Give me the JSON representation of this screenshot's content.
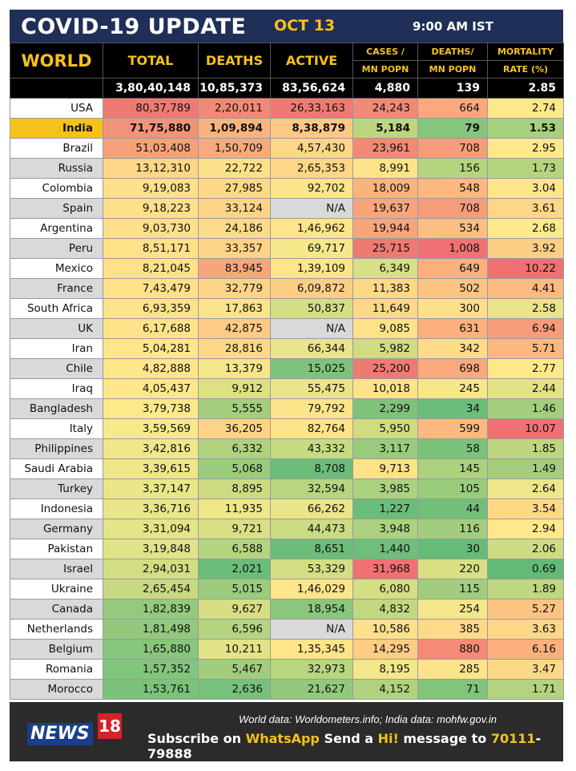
{
  "header": {
    "title": "COVID-19 UPDATE",
    "date": "OCT 13",
    "time": "9:00 AM IST"
  },
  "columns": {
    "world": "WORLD",
    "total": "TOTAL",
    "deaths": "DEATHS",
    "active": "ACTIVE",
    "cases_mn_1": "CASES /",
    "cases_mn_2": "MN POPN",
    "deaths_mn_1": "DEATHS/",
    "deaths_mn_2": "MN POPN",
    "mortality_1": "MORTALITY",
    "mortality_2": "RATE (%)"
  },
  "world_totals": {
    "total": "3,80,40,148",
    "deaths": "10,85,373",
    "active": "83,56,624",
    "cases_mn": "4,880",
    "deaths_mn": "139",
    "mortality": "2.85"
  },
  "rows": [
    {
      "country": "USA",
      "total": "80,37,789",
      "deaths": "2,20,011",
      "active": "26,33,163",
      "cases_mn": "24,243",
      "deaths_mn": "664",
      "mortality": "2.74",
      "colors": [
        "#ee7b73",
        "#f08a77",
        "#ee7b73",
        "#f08a77",
        "#f9a97c",
        "#fee98a"
      ],
      "label_bg": "#ffffff"
    },
    {
      "country": "India",
      "total": "71,75,880",
      "deaths": "1,09,894",
      "active": "8,38,879",
      "cases_mn": "5,184",
      "deaths_mn": "79",
      "mortality": "1.53",
      "colors": [
        "#f29379",
        "#f9b47e",
        "#fcc985",
        "#bcd67f",
        "#86c57c",
        "#a6cf7e"
      ],
      "label_bg": "#f6c21a"
    },
    {
      "country": "Brazil",
      "total": "51,03,408",
      "deaths": "1,50,709",
      "active": "4,57,430",
      "cases_mn": "23,961",
      "deaths_mn": "708",
      "mortality": "2.95",
      "colors": [
        "#f5a27b",
        "#f7ab7d",
        "#fdd687",
        "#f08a77",
        "#f79c7a",
        "#fee98a"
      ],
      "label_bg": "#ffffff"
    },
    {
      "country": "Russia",
      "total": "13,12,310",
      "deaths": "22,722",
      "active": "2,65,353",
      "cases_mn": "8,991",
      "deaths_mn": "156",
      "mortality": "1.73",
      "colors": [
        "#fdd687",
        "#fde089",
        "#fdd687",
        "#fde48a",
        "#b5d47f",
        "#b5d47f"
      ],
      "label_bg": "#d9d9d9"
    },
    {
      "country": "Colombia",
      "total": "9,19,083",
      "deaths": "27,985",
      "active": "92,702",
      "cases_mn": "18,009",
      "deaths_mn": "548",
      "mortality": "3.04",
      "colors": [
        "#fde089",
        "#fdd987",
        "#fde48a",
        "#f9b47e",
        "#fbb880",
        "#fee58a"
      ],
      "label_bg": "#ffffff"
    },
    {
      "country": "Spain",
      "total": "9,18,223",
      "deaths": "33,124",
      "active": "N/A",
      "cases_mn": "19,637",
      "deaths_mn": "708",
      "mortality": "3.61",
      "colors": [
        "#fde089",
        "#fdd487",
        "#d9d9d9",
        "#f7a67c",
        "#f79c7a",
        "#fdd687"
      ],
      "label_bg": "#d9d9d9"
    },
    {
      "country": "Argentina",
      "total": "9,03,730",
      "deaths": "24,186",
      "active": "1,46,962",
      "cases_mn": "19,944",
      "deaths_mn": "534",
      "mortality": "2.68",
      "colors": [
        "#fde089",
        "#fddb88",
        "#fee58a",
        "#f7a67c",
        "#fbbf81",
        "#feea8a"
      ],
      "label_bg": "#ffffff"
    },
    {
      "country": "Peru",
      "total": "8,51,171",
      "deaths": "33,357",
      "active": "69,717",
      "cases_mn": "25,715",
      "deaths_mn": "1,008",
      "mortality": "3.92",
      "colors": [
        "#fee189",
        "#fdd487",
        "#f5e78a",
        "#ee7b73",
        "#f17073",
        "#fdcf86"
      ],
      "label_bg": "#d9d9d9"
    },
    {
      "country": "Mexico",
      "total": "8,21,045",
      "deaths": "83,945",
      "active": "1,39,109",
      "cases_mn": "6,349",
      "deaths_mn": "649",
      "mortality": "10.22",
      "colors": [
        "#fee189",
        "#f7a67c",
        "#fee58a",
        "#d8df84",
        "#fbb07e",
        "#f17073"
      ],
      "label_bg": "#ffffff"
    },
    {
      "country": "France",
      "total": "7,43,479",
      "deaths": "32,779",
      "active": "6,09,872",
      "cases_mn": "11,383",
      "deaths_mn": "502",
      "mortality": "4.41",
      "colors": [
        "#fee189",
        "#fdd487",
        "#fdcf86",
        "#fdd987",
        "#fcc482",
        "#fbbb80"
      ],
      "label_bg": "#d9d9d9"
    },
    {
      "country": "South Africa",
      "total": "6,93,359",
      "deaths": "17,863",
      "active": "50,837",
      "cases_mn": "11,649",
      "deaths_mn": "300",
      "mortality": "2.58",
      "colors": [
        "#fee28a",
        "#fde38a",
        "#d4de84",
        "#fdd987",
        "#fee08a",
        "#e8e488"
      ],
      "label_bg": "#ffffff"
    },
    {
      "country": "UK",
      "total": "6,17,688",
      "deaths": "42,875",
      "active": "N/A",
      "cases_mn": "9,085",
      "deaths_mn": "631",
      "mortality": "6.94",
      "colors": [
        "#fee38a",
        "#fccb85",
        "#d9d9d9",
        "#fde28a",
        "#fbb07e",
        "#f79c7a"
      ],
      "label_bg": "#d9d9d9"
    },
    {
      "country": "Iran",
      "total": "5,04,281",
      "deaths": "28,816",
      "active": "66,344",
      "cases_mn": "5,982",
      "deaths_mn": "342",
      "mortality": "5.71",
      "colors": [
        "#fee68a",
        "#fdd987",
        "#eae58a",
        "#d0dc82",
        "#fedc88",
        "#fbb880"
      ],
      "label_bg": "#ffffff"
    },
    {
      "country": "Chile",
      "total": "4,82,888",
      "deaths": "13,379",
      "active": "15,025",
      "cases_mn": "25,200",
      "deaths_mn": "698",
      "mortality": "2.77",
      "colors": [
        "#fee68a",
        "#f5e68a",
        "#7fc37b",
        "#ee7b73",
        "#f9a97c",
        "#fee98a"
      ],
      "label_bg": "#d9d9d9"
    },
    {
      "country": "Iraq",
      "total": "4,05,437",
      "deaths": "9,912",
      "active": "55,475",
      "cases_mn": "10,018",
      "deaths_mn": "245",
      "mortality": "2.44",
      "colors": [
        "#fee78a",
        "#dde184",
        "#ebe58a",
        "#fde28a",
        "#f7e78a",
        "#e3e287"
      ],
      "label_bg": "#ffffff"
    },
    {
      "country": "Bangladesh",
      "total": "3,79,738",
      "deaths": "5,555",
      "active": "79,792",
      "cases_mn": "2,299",
      "deaths_mn": "34",
      "mortality": "1.46",
      "colors": [
        "#fbe98a",
        "#a4ce7e",
        "#fde48a",
        "#7fc37b",
        "#6bbd79",
        "#a4ce7e"
      ],
      "label_bg": "#d9d9d9"
    },
    {
      "country": "Italy",
      "total": "3,59,569",
      "deaths": "36,205",
      "active": "82,764",
      "cases_mn": "5,950",
      "deaths_mn": "599",
      "mortality": "10.07",
      "colors": [
        "#f7e98a",
        "#fdd487",
        "#fde48a",
        "#d0dc82",
        "#fbb880",
        "#f17073"
      ],
      "label_bg": "#ffffff"
    },
    {
      "country": "Philippines",
      "total": "3,42,816",
      "deaths": "6,332",
      "active": "43,332",
      "cases_mn": "3,117",
      "deaths_mn": "58",
      "mortality": "1.85",
      "colors": [
        "#f0e78a",
        "#b0d27f",
        "#c8da82",
        "#99cb7d",
        "#7bc27b",
        "#bcd67f"
      ],
      "label_bg": "#d9d9d9"
    },
    {
      "country": "Saudi Arabia",
      "total": "3,39,615",
      "deaths": "5,068",
      "active": "8,708",
      "cases_mn": "9,713",
      "deaths_mn": "145",
      "mortality": "1.49",
      "colors": [
        "#eee78a",
        "#9bcc7d",
        "#6bbd79",
        "#fde28a",
        "#acd17f",
        "#a4ce7e"
      ],
      "label_bg": "#ffffff"
    },
    {
      "country": "Turkey",
      "total": "3,37,147",
      "deaths": "8,895",
      "active": "32,594",
      "cases_mn": "3,985",
      "deaths_mn": "105",
      "mortality": "2.64",
      "colors": [
        "#eae68a",
        "#cfdb82",
        "#b8d580",
        "#acd17f",
        "#9bcc7d",
        "#ede68a"
      ],
      "label_bg": "#d9d9d9"
    },
    {
      "country": "Indonesia",
      "total": "3,36,716",
      "deaths": "11,935",
      "active": "66,262",
      "cases_mn": "1,227",
      "deaths_mn": "44",
      "mortality": "3.54",
      "colors": [
        "#e8e58a",
        "#efe78a",
        "#eae58a",
        "#6bbd79",
        "#72bf7a",
        "#fdd987"
      ],
      "label_bg": "#ffffff"
    },
    {
      "country": "Germany",
      "total": "3,31,094",
      "deaths": "9,721",
      "active": "44,473",
      "cases_mn": "3,948",
      "deaths_mn": "116",
      "mortality": "2.94",
      "colors": [
        "#e5e488",
        "#d9df84",
        "#cbdb82",
        "#acd17f",
        "#a2cd7e",
        "#fee98a"
      ],
      "label_bg": "#d9d9d9"
    },
    {
      "country": "Pakistan",
      "total": "3,19,848",
      "deaths": "6,588",
      "active": "8,651",
      "cases_mn": "1,440",
      "deaths_mn": "30",
      "mortality": "2.06",
      "colors": [
        "#e0e387",
        "#b5d47f",
        "#6bbd79",
        "#6fbe7a",
        "#66bb78",
        "#cfdb82"
      ],
      "label_bg": "#ffffff"
    },
    {
      "country": "Israel",
      "total": "2,94,031",
      "deaths": "2,021",
      "active": "53,329",
      "cases_mn": "31,968",
      "deaths_mn": "220",
      "mortality": "0.69",
      "colors": [
        "#d3dd83",
        "#6bbd79",
        "#d3dd83",
        "#f17073",
        "#d8df84",
        "#63ba78"
      ],
      "label_bg": "#d9d9d9"
    },
    {
      "country": "Ukraine",
      "total": "2,65,454",
      "deaths": "5,015",
      "active": "1,46,029",
      "cases_mn": "6,080",
      "deaths_mn": "115",
      "mortality": "1.89",
      "colors": [
        "#c7d981",
        "#9bcc7d",
        "#fee58a",
        "#d4de84",
        "#a2cd7e",
        "#bfd780"
      ],
      "label_bg": "#ffffff"
    },
    {
      "country": "Canada",
      "total": "1,82,839",
      "deaths": "9,627",
      "active": "18,954",
      "cases_mn": "4,832",
      "deaths_mn": "254",
      "mortality": "5.27",
      "colors": [
        "#95c97d",
        "#d6de84",
        "#8ac77c",
        "#c1d881",
        "#f4e68a",
        "#fbc482"
      ],
      "label_bg": "#d9d9d9"
    },
    {
      "country": "Netherlands",
      "total": "1,81,498",
      "deaths": "6,596",
      "active": "N/A",
      "cases_mn": "10,586",
      "deaths_mn": "385",
      "mortality": "3.63",
      "colors": [
        "#93c97d",
        "#b5d47f",
        "#d9d9d9",
        "#fde08a",
        "#fed987",
        "#fdd687"
      ],
      "label_bg": "#ffffff"
    },
    {
      "country": "Belgium",
      "total": "1,65,880",
      "deaths": "10,211",
      "active": "1,35,345",
      "cases_mn": "14,295",
      "deaths_mn": "880",
      "mortality": "6.16",
      "colors": [
        "#87c67c",
        "#e3e287",
        "#fee58a",
        "#fdcc85",
        "#f58a77",
        "#fbb07e"
      ],
      "label_bg": "#d9d9d9"
    },
    {
      "country": "Romania",
      "total": "1,57,352",
      "deaths": "5,467",
      "active": "32,973",
      "cases_mn": "8,195",
      "deaths_mn": "285",
      "mortality": "3.47",
      "colors": [
        "#82c57c",
        "#a2cd7e",
        "#b8d580",
        "#f4e68a",
        "#fde48a",
        "#fdd987"
      ],
      "label_bg": "#ffffff"
    },
    {
      "country": "Morocco",
      "total": "1,53,761",
      "deaths": "2,636",
      "active": "21,627",
      "cases_mn": "4,152",
      "deaths_mn": "71",
      "mortality": "1.71",
      "colors": [
        "#7bc27b",
        "#77c17b",
        "#93c97d",
        "#b0d27f",
        "#81c47b",
        "#b3d37f"
      ],
      "label_bg": "#d9d9d9"
    }
  ],
  "footer": {
    "logo_text": "NEWS",
    "logo_num": "18",
    "source": "World data: Worldometers.info; India data: mohfw.gov.in",
    "subscribe_1": "Subscribe on ",
    "subscribe_whatsapp": "WhatsApp",
    "subscribe_2": " Send a ",
    "subscribe_hi": "Hi!",
    "subscribe_3": " message to ",
    "subscribe_num1": "70111",
    "subscribe_num2": "-79888"
  }
}
